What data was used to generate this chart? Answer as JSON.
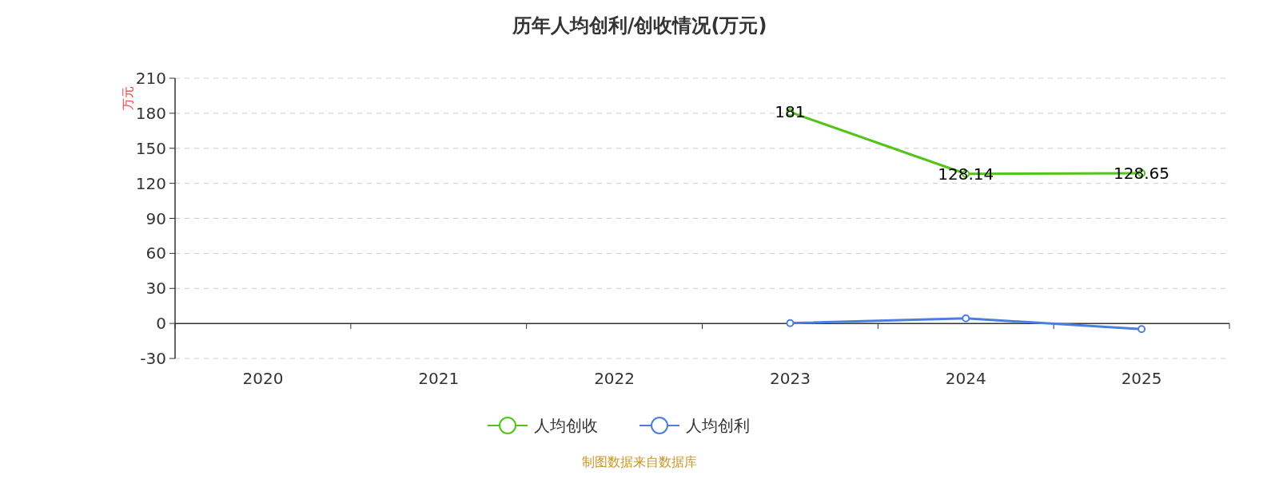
{
  "chart_data": {
    "type": "line",
    "title": "历年人均创利/创收情况(万元)",
    "ylabel": "万元",
    "categories": [
      "2020",
      "2021",
      "2022",
      "2023",
      "2024",
      "2025"
    ],
    "series": [
      {
        "name": "人均创收",
        "color": "#52c41a",
        "values": [
          null,
          null,
          null,
          181,
          128.14,
          128.65
        ],
        "value_labels": [
          null,
          null,
          null,
          "181",
          "128.14",
          "128.65"
        ]
      },
      {
        "name": "人均创利",
        "color": "#4a7fe0",
        "values": [
          null,
          null,
          null,
          0.3,
          4.3,
          -4.9
        ]
      }
    ],
    "ylim": [
      -30,
      210
    ],
    "yticks": [
      -30,
      0,
      30,
      60,
      90,
      120,
      150,
      180,
      210
    ],
    "grid": "y",
    "legend": "bottom",
    "marker": "circle",
    "line_style": "solid",
    "annotations": [
      "制图数据来自数据库"
    ]
  }
}
